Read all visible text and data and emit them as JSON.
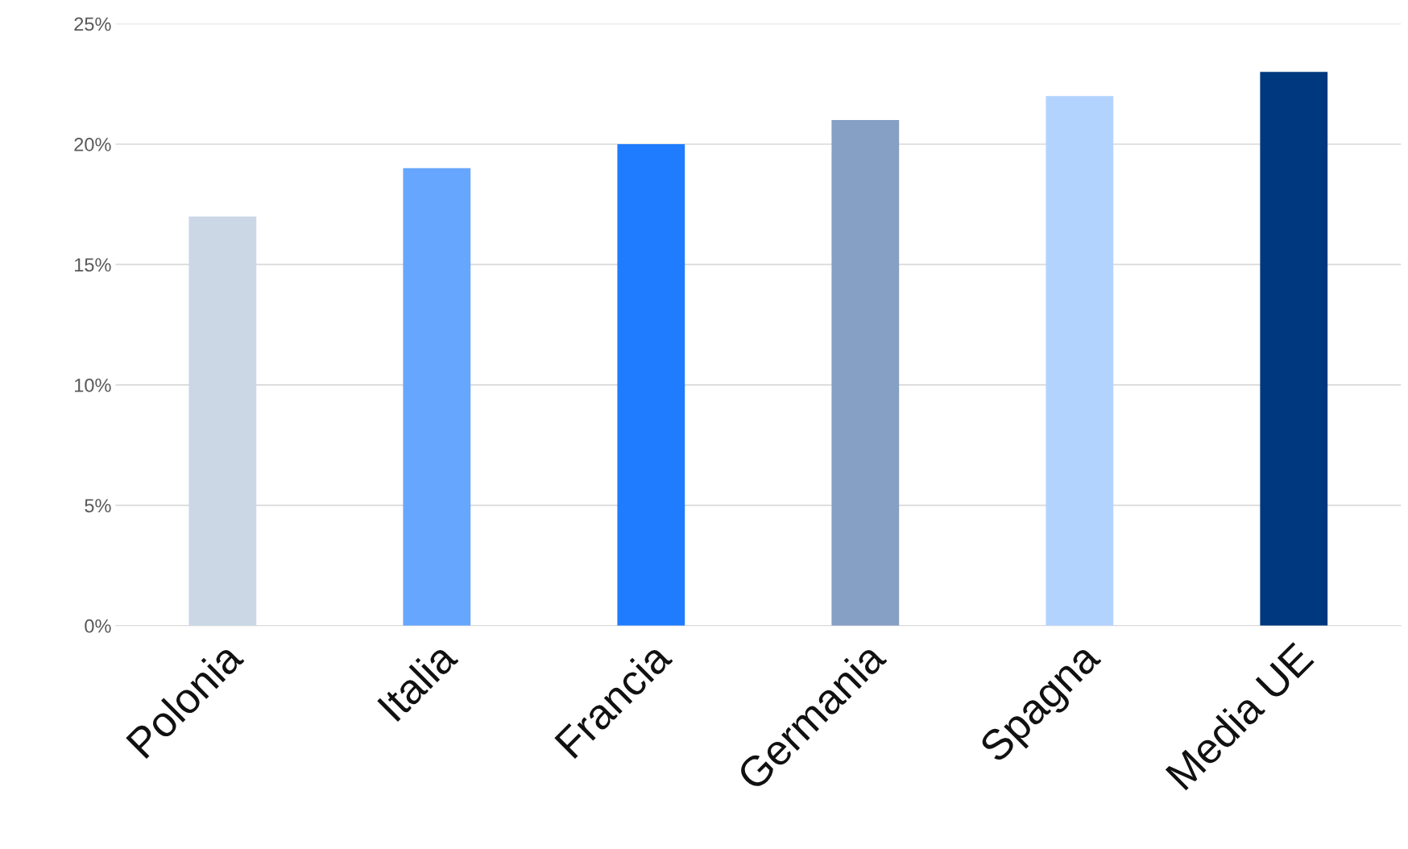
{
  "chart_data": {
    "type": "bar",
    "categories": [
      "Polonia",
      "Italia",
      "Francia",
      "Germania",
      "Spagna",
      "Media UE"
    ],
    "values": [
      17,
      19,
      20,
      21,
      22,
      23
    ],
    "colors": [
      "#cbd7e5",
      "#66a6ff",
      "#1f7cff",
      "#869fc4",
      "#b3d3ff",
      "#00387f"
    ],
    "ylim": [
      0,
      25
    ],
    "yticks": [
      {
        "value": 0,
        "label": "0%"
      },
      {
        "value": 5,
        "label": "5%"
      },
      {
        "value": 10,
        "label": "10%"
      },
      {
        "value": 15,
        "label": "15%"
      },
      {
        "value": 20,
        "label": "20%"
      },
      {
        "value": 25,
        "label": "25%"
      }
    ],
    "grid": "y",
    "legend": false
  }
}
